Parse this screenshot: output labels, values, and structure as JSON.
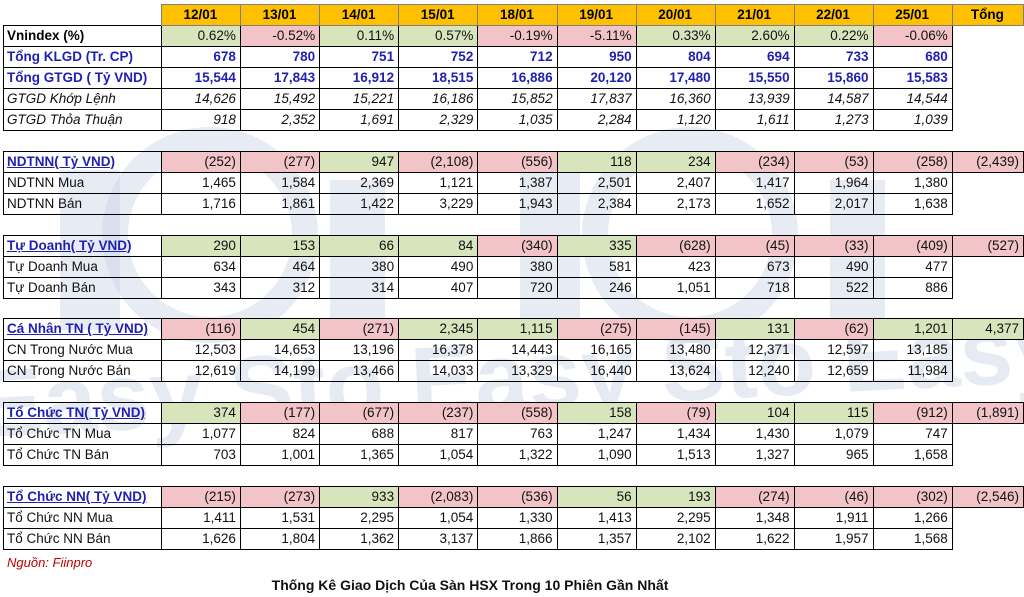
{
  "columns": [
    "12/01",
    "13/01",
    "14/01",
    "15/01",
    "18/01",
    "19/01",
    "20/01",
    "21/01",
    "22/01",
    "25/01",
    "Tổng"
  ],
  "rows": {
    "vnindex": {
      "label": "Vnindex (%)",
      "values": [
        "0.62%",
        "-0.52%",
        "0.11%",
        "0.57%",
        "-0.19%",
        "-5.11%",
        "0.33%",
        "2.60%",
        "0.22%",
        "-0.06%",
        ""
      ]
    },
    "klgd": {
      "label": "Tổng KLGD (Tr. CP)",
      "values": [
        "678",
        "780",
        "751",
        "752",
        "712",
        "950",
        "804",
        "694",
        "733",
        "680",
        ""
      ]
    },
    "gtgd": {
      "label": "Tổng GTGD ( Tỷ VND)",
      "values": [
        "15,544",
        "17,843",
        "16,912",
        "18,515",
        "16,886",
        "20,120",
        "17,480",
        "15,550",
        "15,860",
        "15,583",
        ""
      ]
    },
    "gtgd_khop": {
      "label": "GTGD Khớp Lệnh",
      "values": [
        "14,626",
        "15,492",
        "15,221",
        "16,186",
        "15,852",
        "17,837",
        "16,360",
        "13,939",
        "14,587",
        "14,544",
        ""
      ]
    },
    "gtgd_thoa": {
      "label": "GTGD Thỏa Thuận",
      "values": [
        "918",
        "2,352",
        "1,691",
        "2,329",
        "1,035",
        "2,284",
        "1,120",
        "1,611",
        "1,273",
        "1,039",
        ""
      ]
    },
    "ndtnn": {
      "label": "NDTNN( Tỷ VND)",
      "values": [
        "(252)",
        "(277)",
        "947",
        "(2,108)",
        "(556)",
        "118",
        "234",
        "(234)",
        "(53)",
        "(258)",
        "(2,439)"
      ]
    },
    "ndtnn_mua": {
      "label": "NDTNN Mua",
      "values": [
        "1,465",
        "1,584",
        "2,369",
        "1,121",
        "1,387",
        "2,501",
        "2,407",
        "1,417",
        "1,964",
        "1,380",
        ""
      ]
    },
    "ndtnn_ban": {
      "label": "NDTNN Bán",
      "values": [
        "1,716",
        "1,861",
        "1,422",
        "3,229",
        "1,943",
        "2,384",
        "2,173",
        "1,652",
        "2,017",
        "1,638",
        ""
      ]
    },
    "tudoanh": {
      "label": "Tự Doanh( Tỷ VND)",
      "values": [
        "290",
        "153",
        "66",
        "84",
        "(340)",
        "335",
        "(628)",
        "(45)",
        "(33)",
        "(409)",
        "(527)"
      ]
    },
    "tudoanh_mua": {
      "label": "Tự Doanh Mua",
      "values": [
        "634",
        "464",
        "380",
        "490",
        "380",
        "581",
        "423",
        "673",
        "490",
        "477",
        ""
      ]
    },
    "tudoanh_ban": {
      "label": "Tự Doanh Bán",
      "values": [
        "343",
        "312",
        "314",
        "407",
        "720",
        "246",
        "1,051",
        "718",
        "522",
        "886",
        ""
      ]
    },
    "canhan": {
      "label": "Cá Nhân TN ( Tỷ VND)",
      "values": [
        "(116)",
        "454",
        "(271)",
        "2,345",
        "1,115",
        "(275)",
        "(145)",
        "131",
        "(62)",
        "1,201",
        "4,377"
      ]
    },
    "cn_mua": {
      "label": "CN Trong Nước Mua",
      "values": [
        "12,503",
        "14,653",
        "13,196",
        "16,378",
        "14,443",
        "16,165",
        "13,480",
        "12,371",
        "12,597",
        "13,185",
        ""
      ]
    },
    "cn_ban": {
      "label": "CN Trong Nước Bán",
      "values": [
        "12,619",
        "14,199",
        "13,466",
        "14,033",
        "13,329",
        "16,440",
        "13,624",
        "12,240",
        "12,659",
        "11,984",
        ""
      ]
    },
    "tochuc_tn": {
      "label": "Tổ Chức TN( Tỷ VND)",
      "values": [
        "374",
        "(177)",
        "(677)",
        "(237)",
        "(558)",
        "158",
        "(79)",
        "104",
        "115",
        "(912)",
        "(1,891)"
      ]
    },
    "tctn_mua": {
      "label": "Tổ Chức TN Mua",
      "values": [
        "1,077",
        "824",
        "688",
        "817",
        "763",
        "1,247",
        "1,434",
        "1,430",
        "1,079",
        "747",
        ""
      ]
    },
    "tctn_ban": {
      "label": "Tổ Chức TN Bán",
      "values": [
        "703",
        "1,001",
        "1,365",
        "1,054",
        "1,322",
        "1,090",
        "1,513",
        "1,327",
        "965",
        "1,658",
        ""
      ]
    },
    "tochuc_nn": {
      "label": "Tổ Chức NN( Tỷ VND)",
      "values": [
        "(215)",
        "(273)",
        "933",
        "(2,083)",
        "(536)",
        "56",
        "193",
        "(274)",
        "(46)",
        "(302)",
        "(2,546)"
      ]
    },
    "tcnn_mua": {
      "label": "Tổ Chức NN Mua",
      "values": [
        "1,411",
        "1,531",
        "2,295",
        "1,054",
        "1,330",
        "1,413",
        "2,295",
        "1,348",
        "1,911",
        "1,266",
        ""
      ]
    },
    "tcnn_ban": {
      "label": "Tổ Chức NN Bán",
      "values": [
        "1,626",
        "1,804",
        "1,362",
        "3,137",
        "1,866",
        "1,357",
        "2,102",
        "1,622",
        "1,957",
        "1,568",
        ""
      ]
    }
  },
  "colors": {
    "header": "#ffc000",
    "positive": "#d8e4bc",
    "negative": "#f2c4c8",
    "section_label": "#1f1fb0",
    "source": "#c00000"
  },
  "source": "Nguồn: Fiinpro",
  "caption": "Thống Kê Giao Dịch Của Sàn HSX Trong 10 Phiên Gần Nhất",
  "watermark": "Easy Sto Easy Sto Easy Sto"
}
